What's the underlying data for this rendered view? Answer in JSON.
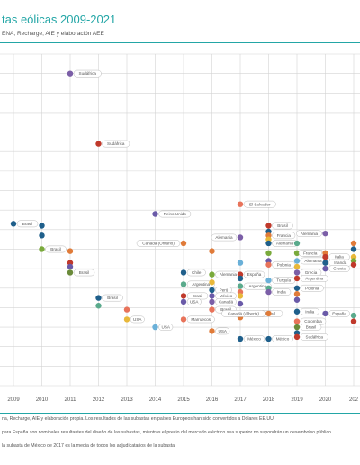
{
  "header": {
    "title": "tas eólicas 2009-2021",
    "subtitle": "ENA, Recharge, AIE y elaboración AEE"
  },
  "footnotes": [
    "na, Recharge, AIE y elaboración propia. Los resultados de las subastas en países Europeos han sido convertidos a Dólares EE.UU.",
    "para España son nominales resultantes del diseño de las subastas, mientras el precio del mercado eléctrico sea superior no supondrán un desembolso público",
    "la subasta de México de 2017 es la media de todos los adjudicatarios de la subasta."
  ],
  "chart_data": {
    "type": "scatter",
    "title": "tas eólicas 2009-2021",
    "xlabel": "",
    "ylabel": "",
    "x_ticks": [
      "2009",
      "2010",
      "2011",
      "2012",
      "2013",
      "2014",
      "2015",
      "2016",
      "2017",
      "2018",
      "2019",
      "2020",
      "202"
    ],
    "xlim": [
      2009,
      2021.2
    ],
    "ylim": [
      0,
      17
    ],
    "grid": true,
    "points": [
      {
        "x": 2011.0,
        "y": 16.0,
        "color": "#7b5ea7",
        "label": "Sudáfrica",
        "side": "right"
      },
      {
        "x": 2012.0,
        "y": 12.4,
        "color": "#c0392b",
        "label": "Sudáfrica",
        "side": "right"
      },
      {
        "x": 2014.0,
        "y": 8.8,
        "color": "#6a5aa8",
        "label": "Reino Unido",
        "side": "right"
      },
      {
        "x": 2017.0,
        "y": 9.3,
        "color": "#e8735a",
        "label": "El Salvador",
        "side": "right"
      },
      {
        "x": 2009.0,
        "y": 8.3,
        "color": "#1f5f8b",
        "label": "Brasil",
        "side": "right"
      },
      {
        "x": 2010.0,
        "y": 8.2,
        "color": "#1f5f8b",
        "label": "",
        "side": "right"
      },
      {
        "x": 2010.0,
        "y": 7.7,
        "color": "#1f5f8b",
        "label": "",
        "side": "right"
      },
      {
        "x": 2010.0,
        "y": 7.0,
        "color": "#7aaa3c",
        "label": "Brasil",
        "side": "right"
      },
      {
        "x": 2011.0,
        "y": 6.9,
        "color": "#e07b39",
        "label": "",
        "side": "right"
      },
      {
        "x": 2011.0,
        "y": 6.3,
        "color": "#c0392b",
        "label": "",
        "side": "right"
      },
      {
        "x": 2011.0,
        "y": 6.1,
        "color": "#6a5aa8",
        "label": "",
        "side": "right"
      },
      {
        "x": 2011.0,
        "y": 5.8,
        "color": "#6a8a3a",
        "label": "Brasil",
        "side": "right"
      },
      {
        "x": 2012.0,
        "y": 4.5,
        "color": "#1f5f8b",
        "label": "Brasil",
        "side": "right"
      },
      {
        "x": 2012.0,
        "y": 4.1,
        "color": "#5aaa8c",
        "label": "",
        "side": "right"
      },
      {
        "x": 2013.0,
        "y": 3.9,
        "color": "#e8735a",
        "label": "",
        "side": "left"
      },
      {
        "x": 2013.0,
        "y": 3.4,
        "color": "#e8b83a",
        "label": "USA",
        "side": "right"
      },
      {
        "x": 2014.0,
        "y": 3.0,
        "color": "#6ab0d8",
        "label": "USA",
        "side": "right"
      },
      {
        "x": 2015.0,
        "y": 7.3,
        "color": "#e07b39",
        "label": "Canadá (Ontario)",
        "side": "left"
      },
      {
        "x": 2015.0,
        "y": 5.8,
        "color": "#1f5f8b",
        "label": "Chile",
        "side": "right"
      },
      {
        "x": 2015.0,
        "y": 5.2,
        "color": "#5aaa8c",
        "label": "Argentina",
        "side": "right"
      },
      {
        "x": 2015.0,
        "y": 4.6,
        "color": "#c0392b",
        "label": "Brasil",
        "side": "right"
      },
      {
        "x": 2015.0,
        "y": 4.3,
        "color": "#6a5aa8",
        "label": "USA",
        "side": "right"
      },
      {
        "x": 2015.0,
        "y": 3.4,
        "color": "#e8735a",
        "label": "Marruecos",
        "side": "right"
      },
      {
        "x": 2016.0,
        "y": 6.9,
        "color": "#e07b39",
        "label": "",
        "side": "right"
      },
      {
        "x": 2016.0,
        "y": 5.7,
        "color": "#7aaa3c",
        "label": "Alemania",
        "side": "right"
      },
      {
        "x": 2016.0,
        "y": 5.3,
        "color": "#e8b83a",
        "label": "",
        "side": "right"
      },
      {
        "x": 2016.0,
        "y": 4.9,
        "color": "#1f5f8b",
        "label": "Perú",
        "side": "right"
      },
      {
        "x": 2016.0,
        "y": 4.6,
        "color": "#6a5aa8",
        "label": "México",
        "side": "right"
      },
      {
        "x": 2016.0,
        "y": 4.3,
        "color": "#7b5ea7",
        "label": "Canadá",
        "side": "right"
      },
      {
        "x": 2016.0,
        "y": 3.9,
        "color": "#e8735a",
        "label": "Brasil",
        "side": "right"
      },
      {
        "x": 2016.0,
        "y": 2.8,
        "color": "#e07b39",
        "label": "USA",
        "side": "right"
      },
      {
        "x": 2017.0,
        "y": 7.6,
        "color": "#7b5ea7",
        "label": "Alemania",
        "side": "left"
      },
      {
        "x": 2017.0,
        "y": 6.3,
        "color": "#6ab0d8",
        "label": "",
        "side": "right"
      },
      {
        "x": 2017.0,
        "y": 5.7,
        "color": "#c0392b",
        "label": "España",
        "side": "right"
      },
      {
        "x": 2017.0,
        "y": 5.5,
        "color": "#1f5f8b",
        "label": "",
        "side": "right"
      },
      {
        "x": 2017.0,
        "y": 5.1,
        "color": "#5aaa8c",
        "label": "Argentina",
        "side": "right"
      },
      {
        "x": 2017.0,
        "y": 4.8,
        "color": "#e8735a",
        "label": "",
        "side": "right"
      },
      {
        "x": 2017.0,
        "y": 4.6,
        "color": "#e8b83a",
        "label": "",
        "side": "right"
      },
      {
        "x": 2017.0,
        "y": 4.2,
        "color": "#6a5aa8",
        "label": "",
        "side": "right"
      },
      {
        "x": 2017.0,
        "y": 3.7,
        "color": "#7aaa3c",
        "label": "Chile y Brasil",
        "side": "right"
      },
      {
        "x": 2017.0,
        "y": 3.5,
        "color": "#e07b39",
        "label": "",
        "side": "right"
      },
      {
        "x": 2017.0,
        "y": 2.4,
        "color": "#1f5f8b",
        "label": "México",
        "side": "right"
      },
      {
        "x": 2018.0,
        "y": 8.2,
        "color": "#c0392b",
        "label": "Brasil",
        "side": "right"
      },
      {
        "x": 2018.0,
        "y": 7.9,
        "color": "#1f5f8b",
        "label": "",
        "side": "right"
      },
      {
        "x": 2018.0,
        "y": 7.7,
        "color": "#e07b39",
        "label": "Francia",
        "side": "right"
      },
      {
        "x": 2018.0,
        "y": 7.5,
        "color": "#e8b83a",
        "label": "",
        "side": "right"
      },
      {
        "x": 2018.0,
        "y": 7.3,
        "color": "#1f5f8b",
        "label": "Alemania",
        "side": "right"
      },
      {
        "x": 2018.0,
        "y": 6.8,
        "color": "#7aaa3c",
        "label": "",
        "side": "right"
      },
      {
        "x": 2018.0,
        "y": 6.4,
        "color": "#6a5aa8",
        "label": "",
        "side": "right"
      },
      {
        "x": 2018.0,
        "y": 6.2,
        "color": "#e8735a",
        "label": "Polonia",
        "side": "right"
      },
      {
        "x": 2018.0,
        "y": 5.4,
        "color": "#6ab0d8",
        "label": "Turquía",
        "side": "right"
      },
      {
        "x": 2018.0,
        "y": 5.0,
        "color": "#5aaa8c",
        "label": "",
        "side": "right"
      },
      {
        "x": 2018.0,
        "y": 4.8,
        "color": "#7b5ea7",
        "label": "India",
        "side": "right"
      },
      {
        "x": 2018.0,
        "y": 3.7,
        "color": "#e07b39",
        "label": "Canadá (Alberta)",
        "side": "left"
      },
      {
        "x": 2018.0,
        "y": 2.4,
        "color": "#1f5f8b",
        "label": "México",
        "side": "right"
      },
      {
        "x": 2019.0,
        "y": 7.3,
        "color": "#5aaa8c",
        "label": "",
        "side": "right"
      },
      {
        "x": 2019.0,
        "y": 6.8,
        "color": "#7aaa3c",
        "label": "Francia",
        "side": "right"
      },
      {
        "x": 2019.0,
        "y": 6.4,
        "color": "#6ab0d8",
        "label": "Alemania",
        "side": "right"
      },
      {
        "x": 2019.0,
        "y": 6.1,
        "color": "#e8b83a",
        "label": "",
        "side": "right"
      },
      {
        "x": 2019.0,
        "y": 5.8,
        "color": "#7b5ea7",
        "label": "Grecia",
        "side": "right"
      },
      {
        "x": 2019.0,
        "y": 5.5,
        "color": "#c0392b",
        "label": "Argentina",
        "side": "right"
      },
      {
        "x": 2019.0,
        "y": 5.0,
        "color": "#1f5f8b",
        "label": "Polonia",
        "side": "right"
      },
      {
        "x": 2019.0,
        "y": 4.7,
        "color": "#e07b39",
        "label": "",
        "side": "right"
      },
      {
        "x": 2019.0,
        "y": 4.4,
        "color": "#6a5aa8",
        "label": "",
        "side": "right"
      },
      {
        "x": 2019.0,
        "y": 3.8,
        "color": "#1f5f8b",
        "label": "India",
        "side": "right"
      },
      {
        "x": 2019.0,
        "y": 3.3,
        "color": "#e8735a",
        "label": "Colombia",
        "side": "right"
      },
      {
        "x": 2019.0,
        "y": 3.0,
        "color": "#6a8a3a",
        "label": "Brasil",
        "side": "right"
      },
      {
        "x": 2019.0,
        "y": 2.7,
        "color": "#1f5f8b",
        "label": "",
        "side": "right"
      },
      {
        "x": 2019.0,
        "y": 2.5,
        "color": "#c0392b",
        "label": "Sudáfrica",
        "side": "right"
      },
      {
        "x": 2020.0,
        "y": 7.8,
        "color": "#7b5ea7",
        "label": "Alemania",
        "side": "left"
      },
      {
        "x": 2020.0,
        "y": 6.8,
        "color": "#e07b39",
        "label": "Francia",
        "side": "left"
      },
      {
        "x": 2020.0,
        "y": 6.6,
        "color": "#c0392b",
        "label": "Italia",
        "side": "right"
      },
      {
        "x": 2020.0,
        "y": 6.3,
        "color": "#1f5f8b",
        "label": "Irlanda",
        "side": "right"
      },
      {
        "x": 2020.0,
        "y": 6.0,
        "color": "#6a5aa8",
        "label": "Grecia",
        "side": "right"
      },
      {
        "x": 2020.0,
        "y": 3.7,
        "color": "#6a5aa8",
        "label": "España",
        "side": "right"
      },
      {
        "x": 2021.0,
        "y": 7.3,
        "color": "#e07b39",
        "label": "",
        "side": "right"
      },
      {
        "x": 2021.0,
        "y": 7.0,
        "color": "#1f5f8b",
        "label": "",
        "side": "right"
      },
      {
        "x": 2021.0,
        "y": 6.6,
        "color": "#e8b83a",
        "label": "",
        "side": "right"
      },
      {
        "x": 2021.0,
        "y": 6.4,
        "color": "#7aaa3c",
        "label": "",
        "side": "right"
      },
      {
        "x": 2021.0,
        "y": 6.2,
        "color": "#c0392b",
        "label": "",
        "side": "right"
      },
      {
        "x": 2021.0,
        "y": 3.6,
        "color": "#5aaa8c",
        "label": "",
        "side": "right"
      },
      {
        "x": 2021.0,
        "y": 3.3,
        "color": "#c0392b",
        "label": "",
        "side": "right"
      }
    ]
  }
}
